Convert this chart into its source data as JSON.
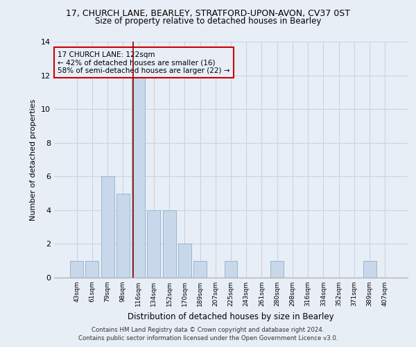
{
  "title_line1": "17, CHURCH LANE, BEARLEY, STRATFORD-UPON-AVON, CV37 0ST",
  "title_line2": "Size of property relative to detached houses in Bearley",
  "xlabel": "Distribution of detached houses by size in Bearley",
  "ylabel": "Number of detached properties",
  "categories": [
    "43sqm",
    "61sqm",
    "79sqm",
    "98sqm",
    "116sqm",
    "134sqm",
    "152sqm",
    "170sqm",
    "189sqm",
    "207sqm",
    "225sqm",
    "243sqm",
    "261sqm",
    "280sqm",
    "298sqm",
    "316sqm",
    "334sqm",
    "352sqm",
    "371sqm",
    "389sqm",
    "407sqm"
  ],
  "values": [
    1,
    1,
    6,
    5,
    12,
    4,
    4,
    2,
    1,
    0,
    1,
    0,
    0,
    1,
    0,
    0,
    0,
    0,
    0,
    1,
    0
  ],
  "bar_color": "#c8d8ea",
  "bar_edge_color": "#8ab0cc",
  "grid_color": "#c8d4e4",
  "bg_color": "#e8eef6",
  "vline_x_index": 4,
  "vline_color": "#8b0000",
  "annotation_text": "17 CHURCH LANE: 122sqm\n← 42% of detached houses are smaller (16)\n58% of semi-detached houses are larger (22) →",
  "annotation_box_color": "#cc0000",
  "footer_line1": "Contains HM Land Registry data © Crown copyright and database right 2024.",
  "footer_line2": "Contains public sector information licensed under the Open Government Licence v3.0.",
  "ylim": [
    0,
    14
  ],
  "yticks": [
    0,
    2,
    4,
    6,
    8,
    10,
    12,
    14
  ]
}
